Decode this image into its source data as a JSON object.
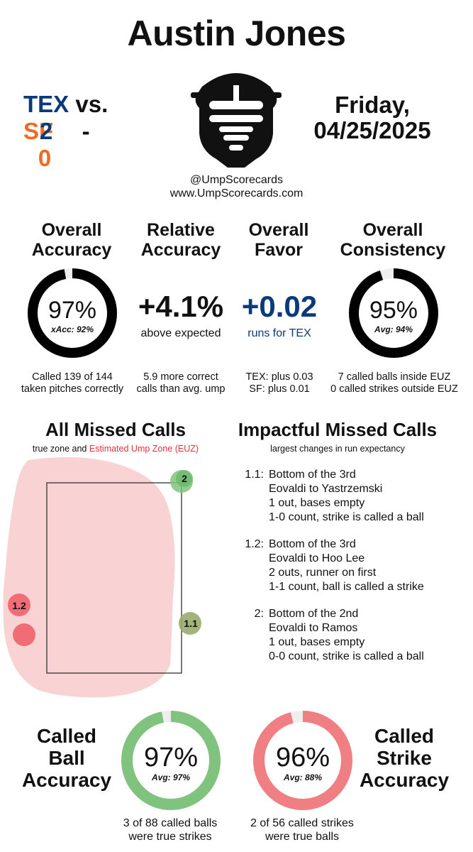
{
  "umpire_name": "Austin Jones",
  "game": {
    "away_team": "TEX",
    "vs_label": "vs.",
    "home_team": "SF",
    "away_score": "2",
    "score_sep": "-",
    "home_score": "0",
    "date_line1": "Friday,",
    "date_line2": "04/25/2025"
  },
  "branding": {
    "handle": "@UmpScorecards",
    "website": "www.UmpScorecards.com",
    "logo_icon": "umpire-mask-icon"
  },
  "colors": {
    "tex_blue": "#0a3a7a",
    "sf_orange": "#f06a20",
    "green": "#7fc37e",
    "red": "#ef7f82",
    "ring_dark": "#000000",
    "euz_fill": "#f9d3d4"
  },
  "metrics": {
    "overall_accuracy": {
      "header": [
        "Overall",
        "Accuracy"
      ],
      "value": "97%",
      "sub": "xAcc: 92%",
      "fraction": 0.97,
      "note": [
        "Called 139 of 144",
        "taken pitches correctly"
      ]
    },
    "relative_accuracy": {
      "header": [
        "Relative",
        "Accuracy"
      ],
      "value": "+4.1%",
      "sub": "above expected",
      "note": [
        "5.9 more correct",
        "calls than avg. ump"
      ]
    },
    "overall_favor": {
      "header": [
        "Overall",
        "Favor"
      ],
      "value": "+0.02",
      "sub": "runs for TEX",
      "note": [
        "TEX: plus 0.03",
        "SF: plus 0.01"
      ]
    },
    "overall_consistency": {
      "header": [
        "Overall",
        "Consistency"
      ],
      "value": "95%",
      "sub": "Avg: 94%",
      "fraction": 0.95,
      "note": [
        "7 called balls inside EUZ",
        "0 called strikes outside EUZ"
      ]
    }
  },
  "all_missed_calls": {
    "title": "All Missed Calls",
    "caption_prefix": "true zone and",
    "caption_euz": "Estimated Ump Zone (EUZ)",
    "pitches": [
      {
        "label": "2",
        "type": "ball_called_strike_missed",
        "color": "green"
      },
      {
        "label": "1.1",
        "type": "strike_called_ball",
        "color": "olive"
      },
      {
        "label": "1.2",
        "type": "ball_called_strike",
        "color": "red"
      },
      {
        "label": "",
        "type": "ball_called_strike",
        "color": "red"
      }
    ]
  },
  "impactful_missed_calls": {
    "title": "Impactful Missed Calls",
    "caption": "largest changes in run expectancy",
    "items": [
      {
        "num": "1.1:",
        "lines": [
          "Bottom of the 3rd",
          "Eovaldi to Yastrzemski",
          "1 out, bases empty",
          "1-0 count, strike is called a ball"
        ]
      },
      {
        "num": "1.2:",
        "lines": [
          "Bottom of the 3rd",
          "Eovaldi to Hoo Lee",
          "2 outs, runner on first",
          "1-1 count, ball is called a strike"
        ]
      },
      {
        "num": "2:",
        "lines": [
          "Bottom of the 2nd",
          "Eovaldi to Ramos",
          "1 out, bases empty",
          "0-0 count, strike is called a ball"
        ]
      }
    ]
  },
  "called_ball": {
    "header": [
      "Called",
      "Ball",
      "Accuracy"
    ],
    "value": "97%",
    "sub": "Avg: 97%",
    "fraction": 0.97,
    "note": [
      "3 of 88 called balls",
      "were true strikes"
    ]
  },
  "called_strike": {
    "header": [
      "Called",
      "Strike",
      "Accuracy"
    ],
    "value": "96%",
    "sub": "Avg: 88%",
    "fraction": 0.96,
    "note": [
      "2 of 56 called strikes",
      "were true balls"
    ]
  }
}
